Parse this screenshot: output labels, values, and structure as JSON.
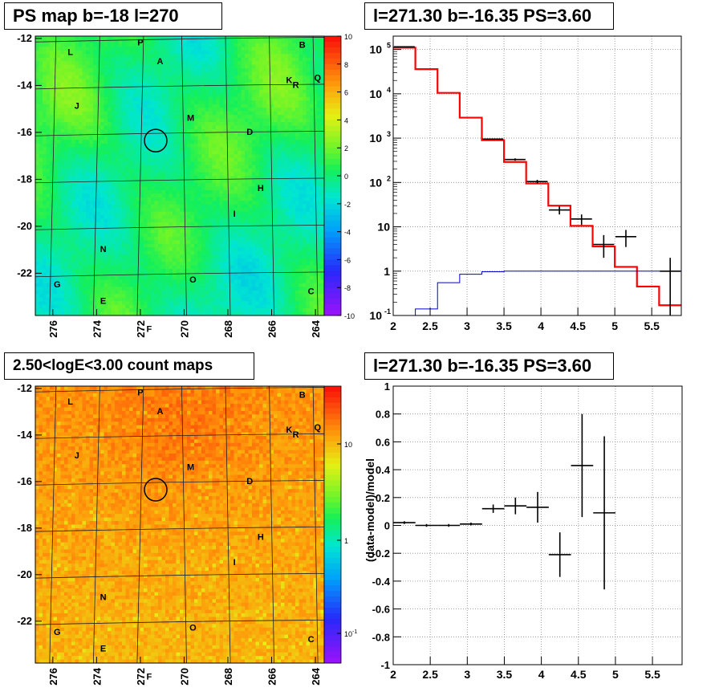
{
  "colors": {
    "data": "#000000",
    "model": "#ff0000",
    "background_model": "#0000cc",
    "grid": "#888888"
  },
  "panels": {
    "ps_map": {
      "title": "PS map b=-18 l=270",
      "colorbar_ticks": [
        "10",
        "8",
        "6",
        "4",
        "2",
        "0",
        "-2",
        "-4",
        "-6",
        "-8",
        "-10"
      ],
      "colorbar_range": [
        -10,
        10
      ]
    },
    "spectrum": {
      "title": "l=271.30 b=-16.35 PS=3.60"
    },
    "count_map": {
      "title": "2.50<logE<3.00 count maps",
      "colorbar_ticks": [
        "10",
        "1",
        "10^-1"
      ]
    },
    "residual": {
      "title": "l=271.30 b=-16.35 PS=3.60"
    }
  },
  "map_axes": {
    "y_ticks": [
      "-12",
      "-14",
      "-16",
      "-18",
      "-20",
      "-22"
    ],
    "x_ticks": [
      "276",
      "274",
      "272",
      "270",
      "268",
      "266",
      "264"
    ]
  },
  "sky_labels": [
    {
      "t": "P",
      "l": 272.0,
      "b": -12.3
    },
    {
      "t": "B",
      "l": 264.6,
      "b": -12.4
    },
    {
      "t": "L",
      "l": 275.2,
      "b": -12.7
    },
    {
      "t": "A",
      "l": 271.1,
      "b": -13.1
    },
    {
      "t": "K",
      "l": 265.2,
      "b": -13.9
    },
    {
      "t": "R",
      "l": 264.9,
      "b": -14.1
    },
    {
      "t": "Q",
      "l": 263.9,
      "b": -13.8
    },
    {
      "t": "J",
      "l": 274.9,
      "b": -15.0
    },
    {
      "t": "M",
      "l": 269.7,
      "b": -15.5
    },
    {
      "t": "D",
      "l": 267.0,
      "b": -16.1
    },
    {
      "t": "H",
      "l": 266.5,
      "b": -18.5
    },
    {
      "t": "I",
      "l": 267.7,
      "b": -19.6
    },
    {
      "t": "N",
      "l": 273.7,
      "b": -21.1
    },
    {
      "t": "O",
      "l": 269.6,
      "b": -22.4
    },
    {
      "t": "G",
      "l": 275.8,
      "b": -22.6
    },
    {
      "t": "C",
      "l": 264.2,
      "b": -22.9
    },
    {
      "t": "E",
      "l": 273.7,
      "b": -23.3
    },
    {
      "t": "F",
      "l": 271.6,
      "b": -24.5
    }
  ],
  "chart_data": [
    {
      "type": "heatmap",
      "title": "PS map b=-18 l=270",
      "xlim": [
        276.8,
        263.6
      ],
      "ylim": [
        -23.8,
        -11.9
      ],
      "zlim": [
        -10,
        10
      ],
      "source_circle": {
        "l": 271.3,
        "b": -16.35
      }
    },
    {
      "type": "line",
      "title": "l=271.30 b=-16.35 PS=3.60",
      "yscale": "log",
      "xlim": [
        2,
        5.9
      ],
      "ylim": [
        0.1,
        200000
      ],
      "x_ticks": [
        "2",
        "2.5",
        "3",
        "3.5",
        "4",
        "4.5",
        "5",
        "5.5"
      ],
      "y_ticks": [
        {
          "v": 100000,
          "m": "10",
          "e": "5"
        },
        {
          "v": 10000,
          "m": "10",
          "e": "4"
        },
        {
          "v": 1000,
          "m": "10",
          "e": "3"
        },
        {
          "v": 100,
          "m": "10",
          "e": "2"
        },
        {
          "v": 10,
          "m": "10",
          "e": ""
        },
        {
          "v": 1,
          "m": "1",
          "e": ""
        },
        {
          "v": 0.1,
          "m": "10",
          "e": "-1"
        }
      ],
      "bin_edges": [
        2.0,
        2.3,
        2.6,
        2.9,
        3.2,
        3.5,
        3.8,
        4.1,
        4.4,
        4.7,
        5.0,
        5.3,
        5.6,
        5.9
      ],
      "series": [
        {
          "name": "model",
          "values": [
            110000,
            36000,
            10500,
            2900,
            900,
            290,
            95,
            30,
            10.5,
            3.6,
            1.25,
            0.45,
            0.17
          ]
        },
        {
          "name": "background",
          "values": [
            0.1,
            0.14,
            0.55,
            0.85,
            0.97,
            1.0,
            1.0,
            1.0,
            1.0,
            1.0,
            1.0,
            1.0,
            1.0
          ]
        }
      ],
      "data_points": [
        {
          "x": 2.15,
          "y": 115000,
          "lo": 114000,
          "hi": 116000
        },
        {
          "x": 3.35,
          "y": 950,
          "lo": 920,
          "hi": 980
        },
        {
          "x": 3.65,
          "y": 330,
          "lo": 310,
          "hi": 350
        },
        {
          "x": 3.95,
          "y": 105,
          "lo": 95,
          "hi": 115
        },
        {
          "x": 4.25,
          "y": 24,
          "lo": 19,
          "hi": 29
        },
        {
          "x": 4.55,
          "y": 15,
          "lo": 11,
          "hi": 19
        },
        {
          "x": 4.85,
          "y": 4,
          "lo": 2,
          "hi": 6.5
        },
        {
          "x": 5.15,
          "y": 6,
          "lo": 3.5,
          "hi": 8.5
        },
        {
          "x": 5.75,
          "y": 1,
          "lo": 0.1,
          "hi": 2
        }
      ]
    },
    {
      "type": "heatmap",
      "title": "2.50<logE<3.00 count maps",
      "xlim": [
        276.8,
        263.6
      ],
      "ylim": [
        -23.8,
        -11.9
      ],
      "zscale": "log"
    },
    {
      "type": "scatter",
      "title": "l=271.30 b=-16.35 PS=3.60",
      "xlim": [
        2,
        5.9
      ],
      "ylim": [
        -1,
        1
      ],
      "ylabel": "(data-model)/model",
      "x_ticks": [
        "2",
        "2.5",
        "3",
        "3.5",
        "4",
        "4.5",
        "5",
        "5.5"
      ],
      "y_ticks": [
        "1",
        "0.8",
        "0.6",
        "0.4",
        "0.2",
        "0",
        "-0.2",
        "-0.4",
        "-0.6",
        "-0.8",
        "-1"
      ],
      "points": [
        {
          "x0": 2.0,
          "x1": 2.3,
          "y": 0.02,
          "err": 0.01
        },
        {
          "x0": 2.3,
          "x1": 2.6,
          "y": 0.0,
          "err": 0.01
        },
        {
          "x0": 2.6,
          "x1": 2.9,
          "y": 0.0,
          "err": 0.01
        },
        {
          "x0": 2.9,
          "x1": 3.2,
          "y": 0.01,
          "err": 0.01
        },
        {
          "x0": 3.2,
          "x1": 3.5,
          "y": 0.12,
          "err": 0.03
        },
        {
          "x0": 3.5,
          "x1": 3.8,
          "y": 0.14,
          "err": 0.06
        },
        {
          "x0": 3.8,
          "x1": 4.1,
          "y": 0.13,
          "err": 0.11
        },
        {
          "x0": 4.1,
          "x1": 4.4,
          "y": -0.21,
          "err": 0.16
        },
        {
          "x0": 4.4,
          "x1": 4.7,
          "y": 0.43,
          "err": 0.37
        },
        {
          "x0": 4.7,
          "x1": 5.0,
          "y": 0.09,
          "err": 0.55
        }
      ]
    }
  ]
}
